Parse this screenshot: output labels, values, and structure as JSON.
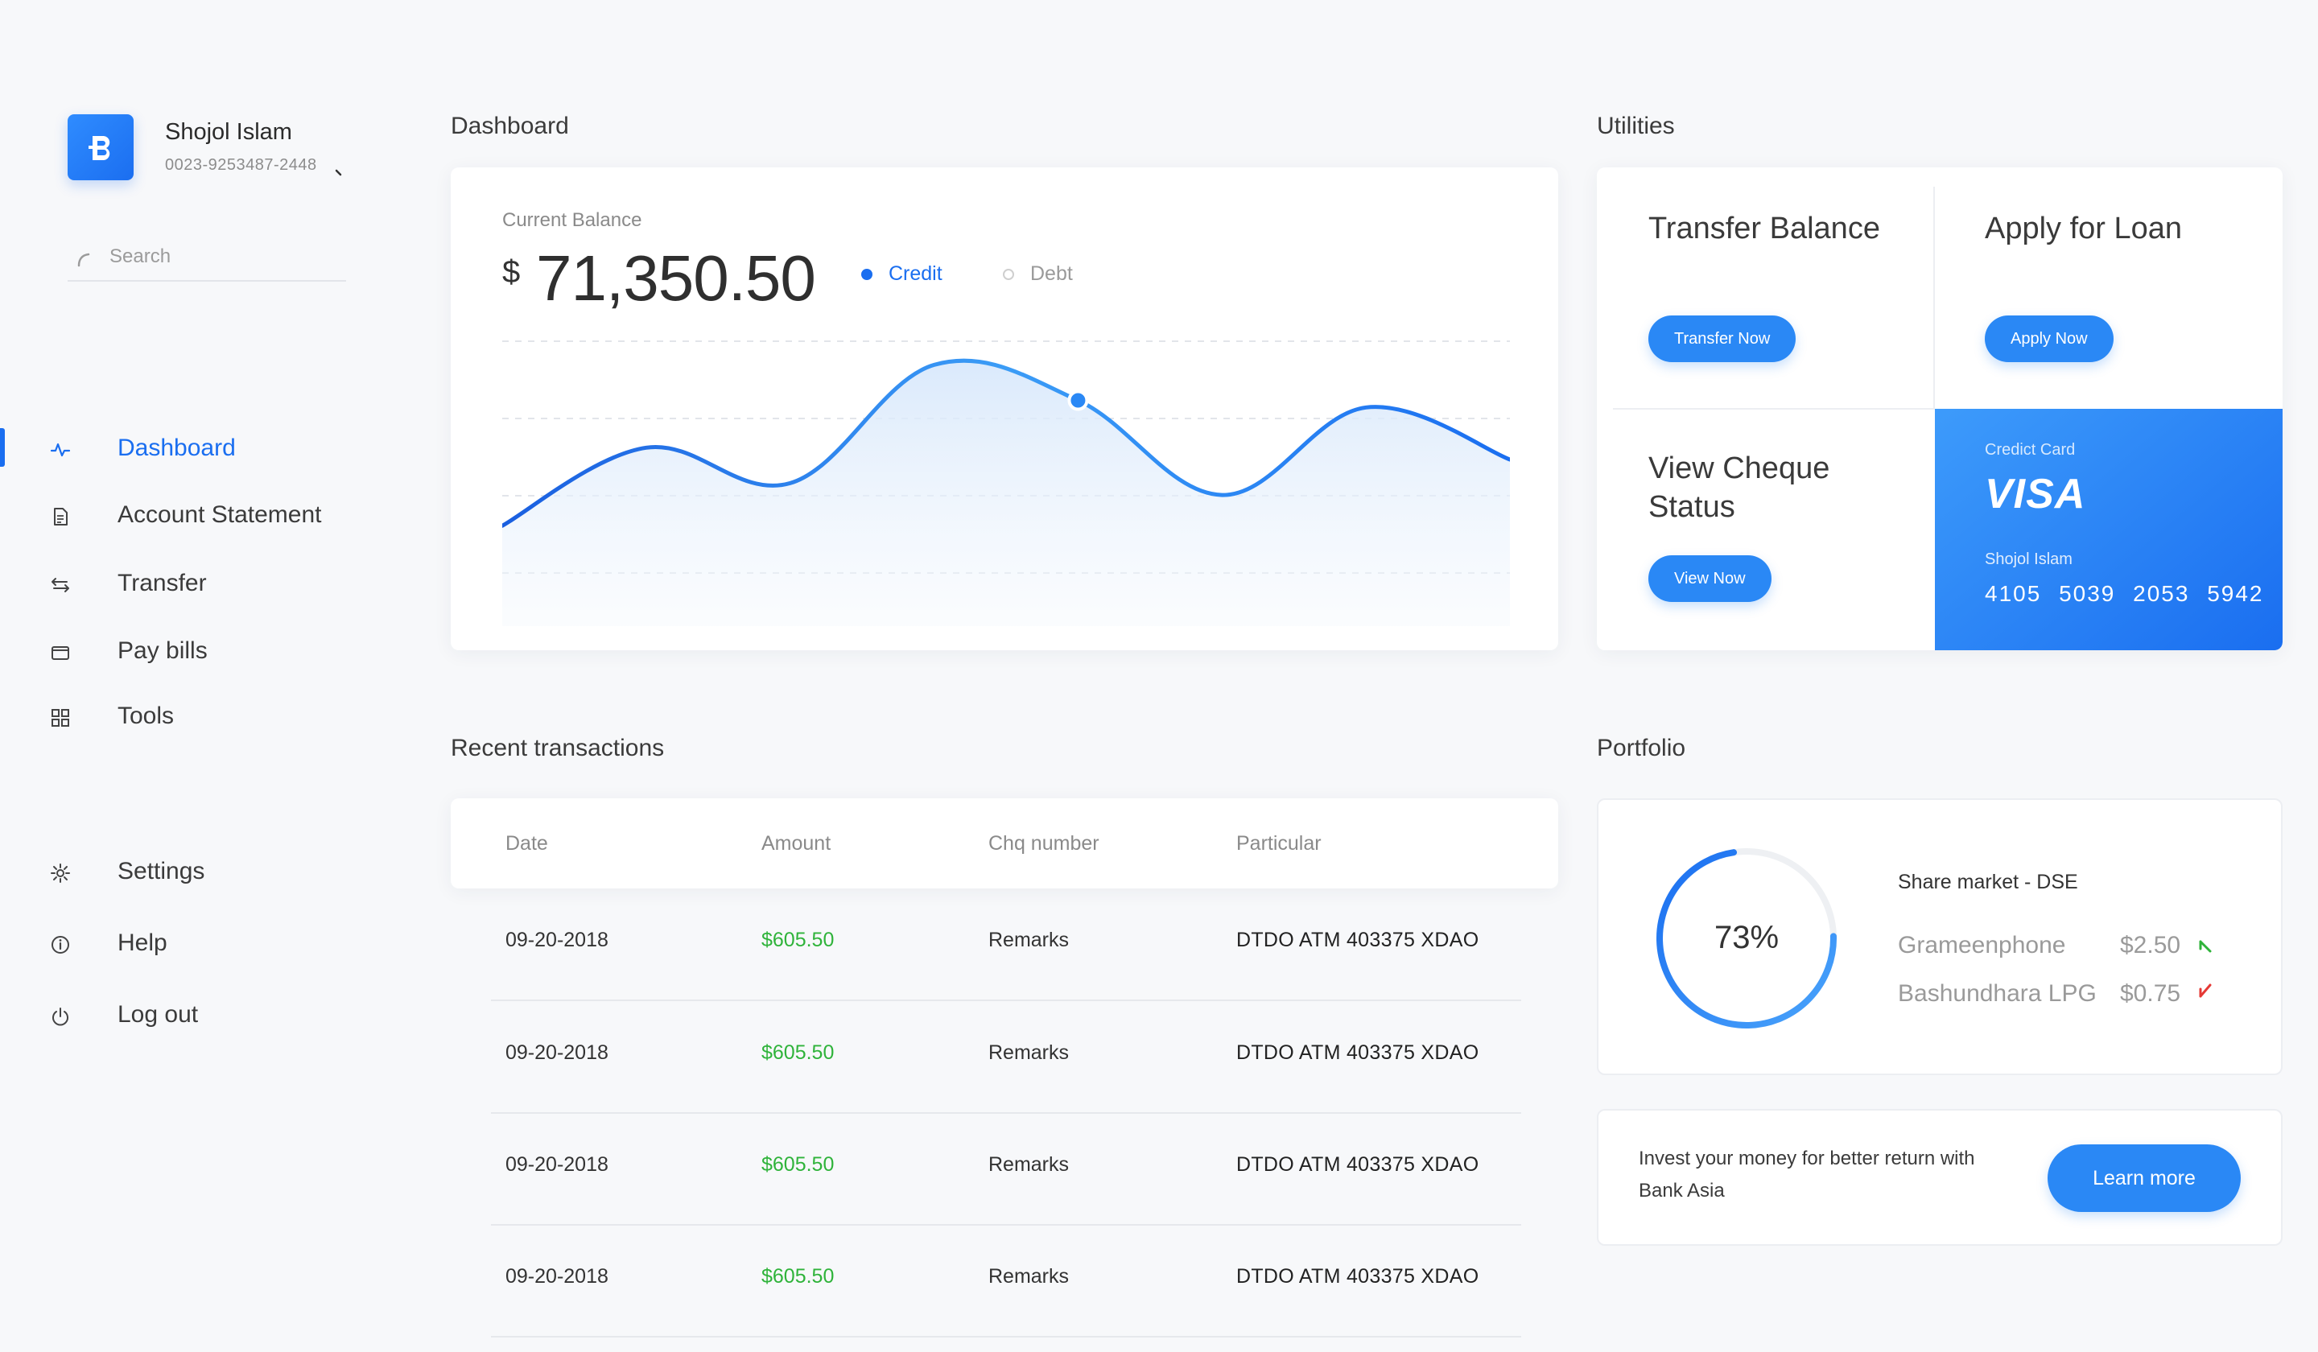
{
  "user": {
    "name": "Shojol Islam",
    "account": "0023-9253487-2448"
  },
  "search": {
    "placeholder": "Search"
  },
  "nav": {
    "dashboard": "Dashboard",
    "account_statement": "Account Statement",
    "transfer": "Transfer",
    "pay_bills": "Pay bills",
    "tools": "Tools",
    "settings": "Settings",
    "help": "Help",
    "logout": "Log out"
  },
  "dashboard": {
    "title": "Dashboard",
    "balance_label": "Current Balance",
    "currency": "$",
    "balance": "71,350.50",
    "legend_credit": "Credit",
    "legend_debt": "Debt"
  },
  "chart_data": {
    "type": "area",
    "series": [
      {
        "name": "Credit",
        "points": [
          [
            0,
            22
          ],
          [
            1,
            55
          ],
          [
            2,
            40
          ],
          [
            3,
            90
          ],
          [
            4,
            75
          ],
          [
            5,
            35
          ],
          [
            6,
            72
          ],
          [
            7,
            50
          ]
        ],
        "highlight_index": 4
      }
    ],
    "grid": true,
    "colors": {
      "line": "#1a6ef0",
      "fill_top": "#d6e7fb",
      "fill_bottom": "#f4f8fd"
    }
  },
  "utilities": {
    "title": "Utilities",
    "transfer_title": "Transfer Balance",
    "transfer_button": "Transfer Now",
    "loan_title": "Apply for Loan",
    "loan_button": "Apply Now",
    "cheque_title": "View Cheque Status",
    "cheque_button": "View Now",
    "card_label": "Credict Card",
    "card_brand": "VISA",
    "card_holder": "Shojol Islam",
    "card_number": "4105 5039 2053 5942"
  },
  "transactions": {
    "title": "Recent transactions",
    "columns": [
      "Date",
      "Amount",
      "Chq number",
      "Particular"
    ],
    "rows": [
      [
        "09-20-2018",
        "$605.50",
        "Remarks",
        "DTDO ATM 403375 XDAO"
      ],
      [
        "09-20-2018",
        "$605.50",
        "Remarks",
        "DTDO ATM 403375 XDAO"
      ],
      [
        "09-20-2018",
        "$605.50",
        "Remarks",
        "DTDO ATM 403375 XDAO"
      ],
      [
        "09-20-2018",
        "$605.50",
        "Remarks",
        "DTDO ATM 403375 XDAO"
      ]
    ]
  },
  "portfolio": {
    "title": "Portfolio",
    "percent": "73%",
    "progress_value": 0.73,
    "market_title": "Share market - DSE",
    "stocks": [
      {
        "name": "Grameenphone",
        "price": "$2.50",
        "trend": "up",
        "color": "#2fb33a"
      },
      {
        "name": "Bashundhara LPG",
        "price": "$0.75",
        "trend": "down",
        "color": "#e53935"
      }
    ],
    "invest_text": "Invest your money for better return with Bank Asia",
    "learn_button": "Learn more"
  },
  "colors": {
    "accent": "#1a6ef0",
    "positive": "#2fb33a",
    "negative": "#e53935"
  }
}
